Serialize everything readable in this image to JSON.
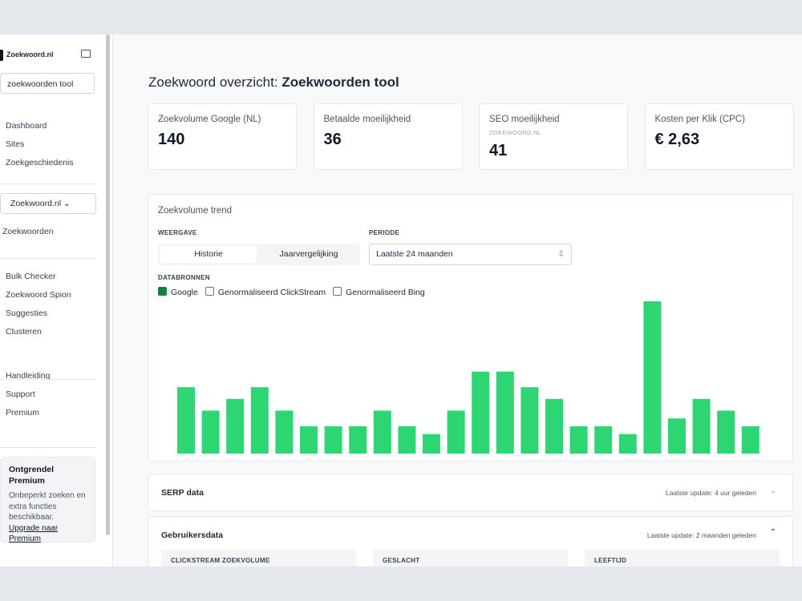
{
  "sidebar": {
    "brand": "Zoekwoord.nl",
    "search": "zoekwoorden tool",
    "nav": [
      "Dashboard",
      "Sites",
      "Zoekgeschiedenis"
    ],
    "project": "Zoekwoord.nl",
    "project_nav": [
      "Zoekwoorden"
    ],
    "tools": [
      "Bulk Checker",
      "Zoekwoord Spion",
      "Suggesties",
      "Clusteren"
    ],
    "help": [
      "Handleiding",
      "Support",
      "Premium"
    ],
    "premium": {
      "title": "Ontgrendel Premium",
      "text": "Onbeperkt zoeken en extra functies beschikbaar.",
      "link": "Upgrade naar Premium"
    }
  },
  "header": {
    "title_prefix": "Zoekwoord overzicht:",
    "title_keyword": "Zoekwoorden tool"
  },
  "cards": [
    {
      "label": "Zoekvolume Google (NL)",
      "value": 140
    },
    {
      "label": "Betaalde moeilijkheid",
      "value": 36
    },
    {
      "label": "SEO moeilijkheid",
      "sub": "ZOEKWOORD.NL",
      "value": 41
    },
    {
      "label": "Kosten per Klik (CPC)",
      "value": "€ 2,63"
    }
  ],
  "trend": {
    "title": "Zoekvolume trend",
    "view_label": "WEERGAVE",
    "view_options": [
      "Historie",
      "Jaarvergelijking"
    ],
    "period_label": "PERIODE",
    "period": "Laatste 24 maanden",
    "sources_label": "DATABRONNEN",
    "sources": [
      {
        "name": "Google",
        "checked": true
      },
      {
        "name": "Genormaliseerd ClickStream",
        "checked": false
      },
      {
        "name": "Genormaliseerd Bing",
        "checked": false
      }
    ]
  },
  "chart_data": {
    "type": "bar",
    "color": "#2ed573",
    "values": [
      170,
      110,
      140,
      170,
      110,
      70,
      70,
      70,
      110,
      70,
      50,
      110,
      210,
      210,
      170,
      140,
      70,
      70,
      50,
      390,
      90,
      140,
      110,
      70
    ]
  },
  "sections": {
    "serp": {
      "title": "SERP data",
      "update": "Laatste update: 4 uur geleden"
    },
    "users": {
      "title": "Gebruikersdata",
      "update": "Laatste update: 2 maanden geleden",
      "columns": [
        "CLICKSTREAM ZOEKVOLUME",
        "GESLACHT",
        "LEEFTIJD"
      ]
    }
  }
}
